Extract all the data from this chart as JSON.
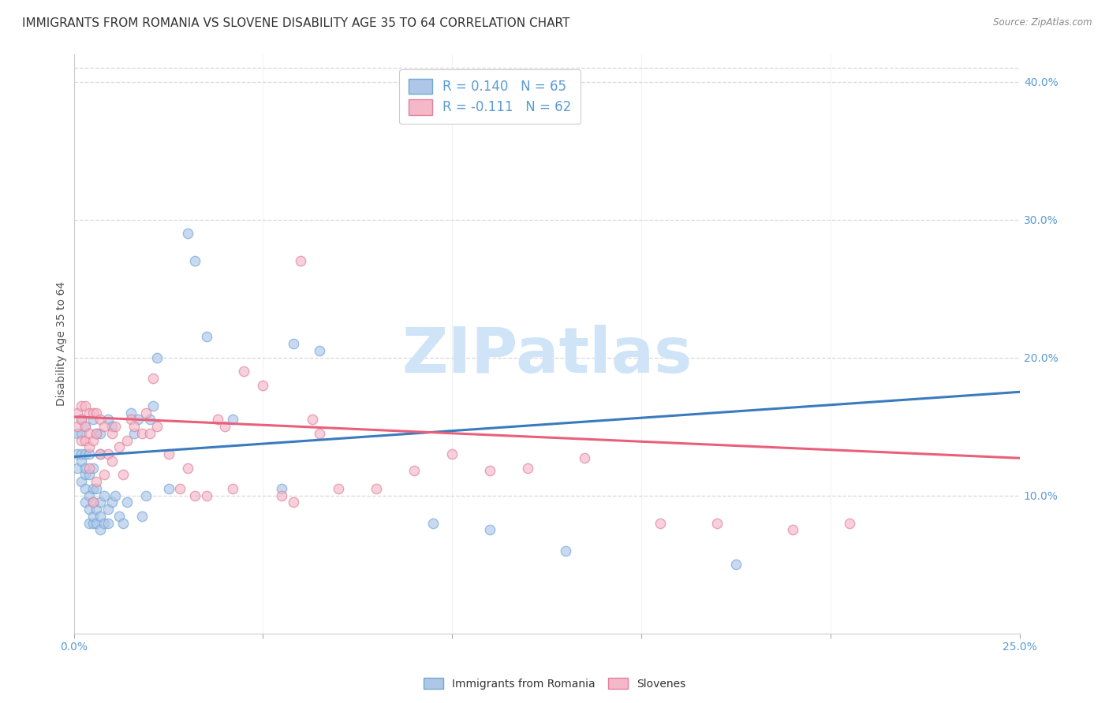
{
  "title": "IMMIGRANTS FROM ROMANIA VS SLOVENE DISABILITY AGE 35 TO 64 CORRELATION CHART",
  "source": "Source: ZipAtlas.com",
  "ylabel": "Disability Age 35 to 64",
  "xlim": [
    0.0,
    0.25
  ],
  "ylim": [
    0.0,
    0.42
  ],
  "xtick_positions": [
    0.0,
    0.05,
    0.1,
    0.15,
    0.2,
    0.25
  ],
  "xticklabels": [
    "0.0%",
    "",
    "",
    "",
    "",
    "25.0%"
  ],
  "yticks_right": [
    0.1,
    0.2,
    0.3,
    0.4
  ],
  "ytick_right_labels": [
    "10.0%",
    "20.0%",
    "30.0%",
    "40.0%"
  ],
  "legend_label_romania": "R = 0.140   N = 65",
  "legend_label_slovenes": "R = -0.111   N = 62",
  "scatter_romania_color": "#aec6e8",
  "scatter_romania_edge": "#6fa8d4",
  "scatter_slovenes_color": "#f4b8c8",
  "scatter_slovenes_edge": "#e0809a",
  "scatter_romania_x": [
    0.001,
    0.001,
    0.001,
    0.002,
    0.002,
    0.002,
    0.002,
    0.002,
    0.003,
    0.003,
    0.003,
    0.003,
    0.003,
    0.003,
    0.004,
    0.004,
    0.004,
    0.004,
    0.004,
    0.005,
    0.005,
    0.005,
    0.005,
    0.005,
    0.005,
    0.006,
    0.006,
    0.006,
    0.006,
    0.007,
    0.007,
    0.007,
    0.007,
    0.007,
    0.008,
    0.008,
    0.009,
    0.009,
    0.009,
    0.01,
    0.01,
    0.011,
    0.012,
    0.013,
    0.014,
    0.015,
    0.016,
    0.017,
    0.018,
    0.019,
    0.02,
    0.021,
    0.022,
    0.025,
    0.03,
    0.032,
    0.035,
    0.042,
    0.055,
    0.058,
    0.065,
    0.095,
    0.11,
    0.13,
    0.175
  ],
  "scatter_romania_y": [
    0.12,
    0.13,
    0.145,
    0.11,
    0.125,
    0.13,
    0.145,
    0.155,
    0.095,
    0.105,
    0.115,
    0.12,
    0.13,
    0.15,
    0.08,
    0.09,
    0.1,
    0.115,
    0.13,
    0.08,
    0.085,
    0.095,
    0.105,
    0.12,
    0.155,
    0.08,
    0.09,
    0.105,
    0.145,
    0.075,
    0.085,
    0.095,
    0.13,
    0.145,
    0.08,
    0.1,
    0.08,
    0.09,
    0.155,
    0.095,
    0.15,
    0.1,
    0.085,
    0.08,
    0.095,
    0.16,
    0.145,
    0.155,
    0.085,
    0.1,
    0.155,
    0.165,
    0.2,
    0.105,
    0.29,
    0.27,
    0.215,
    0.155,
    0.105,
    0.21,
    0.205,
    0.08,
    0.075,
    0.06,
    0.05
  ],
  "scatter_slovenes_x": [
    0.001,
    0.001,
    0.002,
    0.002,
    0.002,
    0.003,
    0.003,
    0.003,
    0.004,
    0.004,
    0.004,
    0.004,
    0.005,
    0.005,
    0.005,
    0.006,
    0.006,
    0.006,
    0.007,
    0.007,
    0.008,
    0.008,
    0.009,
    0.01,
    0.01,
    0.011,
    0.012,
    0.013,
    0.014,
    0.015,
    0.016,
    0.018,
    0.019,
    0.02,
    0.021,
    0.022,
    0.025,
    0.028,
    0.03,
    0.032,
    0.035,
    0.038,
    0.04,
    0.042,
    0.045,
    0.05,
    0.055,
    0.058,
    0.06,
    0.063,
    0.065,
    0.07,
    0.08,
    0.09,
    0.1,
    0.11,
    0.12,
    0.135,
    0.155,
    0.17,
    0.19,
    0.205
  ],
  "scatter_slovenes_y": [
    0.15,
    0.16,
    0.14,
    0.155,
    0.165,
    0.14,
    0.15,
    0.165,
    0.12,
    0.135,
    0.145,
    0.16,
    0.095,
    0.14,
    0.16,
    0.11,
    0.145,
    0.16,
    0.13,
    0.155,
    0.115,
    0.15,
    0.13,
    0.125,
    0.145,
    0.15,
    0.135,
    0.115,
    0.14,
    0.155,
    0.15,
    0.145,
    0.16,
    0.145,
    0.185,
    0.15,
    0.13,
    0.105,
    0.12,
    0.1,
    0.1,
    0.155,
    0.15,
    0.105,
    0.19,
    0.18,
    0.1,
    0.095,
    0.27,
    0.155,
    0.145,
    0.105,
    0.105,
    0.118,
    0.13,
    0.118,
    0.12,
    0.127,
    0.08,
    0.08,
    0.075,
    0.08
  ],
  "trend_romania_x0": 0.0,
  "trend_romania_x1": 0.25,
  "trend_romania_y0": 0.128,
  "trend_romania_y1": 0.175,
  "trend_romania_color": "#3a7abf",
  "trend_slovenes_x0": 0.0,
  "trend_slovenes_x1": 0.25,
  "trend_slovenes_y0": 0.157,
  "trend_slovenes_y1": 0.127,
  "trend_slovenes_color": "#e8607a",
  "grid_color": "#d8d8d8",
  "background_color": "#ffffff",
  "title_fontsize": 11,
  "axis_label_fontsize": 10,
  "tick_fontsize": 10,
  "scatter_size": 80,
  "scatter_alpha": 0.65,
  "watermark_text": "ZIPatlas",
  "watermark_color": "#d0e4f7",
  "watermark_fontsize": 58,
  "bottom_legend_romania": "Immigrants from Romania",
  "bottom_legend_slovenes": "Slovenes"
}
